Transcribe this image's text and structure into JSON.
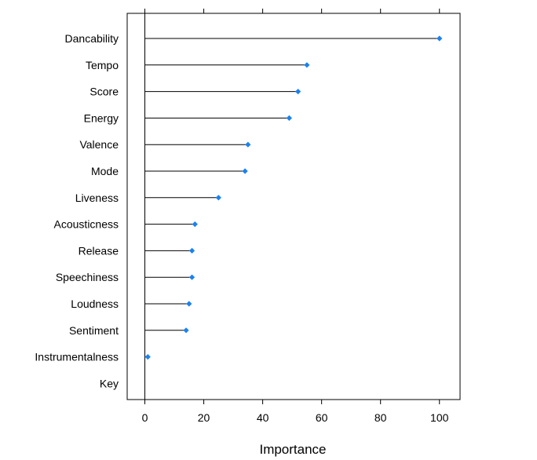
{
  "chart_data": {
    "type": "dot",
    "title": "",
    "xlabel": "Importance",
    "ylabel": "",
    "xlim": [
      -6,
      107
    ],
    "xticks": [
      "0",
      "20",
      "40",
      "60",
      "80",
      "100"
    ],
    "categories": [
      "Dancability",
      "Tempo",
      "Score",
      "Energy",
      "Valence",
      "Mode",
      "Liveness",
      "Acousticness",
      "Release",
      "Speechiness",
      "Loudness",
      "Sentiment",
      "Instrumentalness",
      "Key"
    ],
    "values": [
      100,
      55,
      52,
      49,
      35,
      34,
      25,
      17,
      16,
      16,
      15,
      14,
      1,
      0
    ],
    "point_color": "#1a82f0",
    "line_color": "#000000",
    "grid": false
  }
}
